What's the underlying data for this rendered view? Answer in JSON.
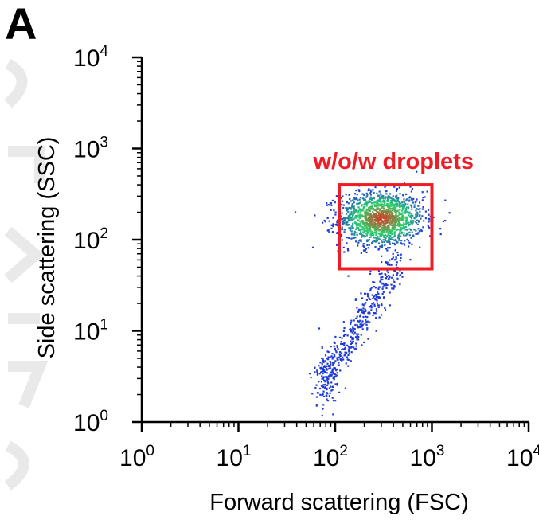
{
  "panel_label": "A",
  "colors": {
    "axis": "#000000",
    "gate": "#ee1c24",
    "density_low": "#1f3bd6",
    "density_mid": "#2ad36a",
    "density_high": "#e3321c",
    "watermark": "#e9e9e9"
  },
  "chart_data": {
    "type": "scatter",
    "title": "",
    "xlabel": "Forward scattering (FSC)",
    "ylabel": "Side scattering (SSC)",
    "xscale": "log",
    "yscale": "log",
    "xlim": [
      1,
      10000
    ],
    "ylim": [
      1,
      10000
    ],
    "grid": false,
    "color_mapping": "density (blue = low, green = medium, red = high)",
    "x_ticks": [
      {
        "base": "10",
        "exp": "0",
        "value": 1
      },
      {
        "base": "10",
        "exp": "1",
        "value": 10
      },
      {
        "base": "10",
        "exp": "2",
        "value": 100
      },
      {
        "base": "10",
        "exp": "3",
        "value": 1000
      },
      {
        "base": "10",
        "exp": "4",
        "value": 10000
      }
    ],
    "y_ticks": [
      {
        "base": "10",
        "exp": "0",
        "value": 1
      },
      {
        "base": "10",
        "exp": "1",
        "value": 10
      },
      {
        "base": "10",
        "exp": "2",
        "value": 100
      },
      {
        "base": "10",
        "exp": "3",
        "value": 1000
      },
      {
        "base": "10",
        "exp": "4",
        "value": 10000
      }
    ],
    "clusters": [
      {
        "center_x": 300,
        "center_y": 170,
        "spread_log_x": 0.22,
        "spread_log_y": 0.15,
        "count": 1400,
        "density": "high"
      },
      {
        "center_x": 180,
        "center_y": 12,
        "spread_log_x": 0.18,
        "spread_log_y": 0.45,
        "count": 420,
        "density": "low"
      },
      {
        "center_x": 80,
        "center_y": 3,
        "spread_log_x": 0.06,
        "spread_log_y": 0.2,
        "count": 90,
        "density": "low"
      }
    ],
    "gate": {
      "label": "w/o/w droplets",
      "x_range": [
        110,
        1000
      ],
      "y_range": [
        48,
        400
      ]
    }
  }
}
